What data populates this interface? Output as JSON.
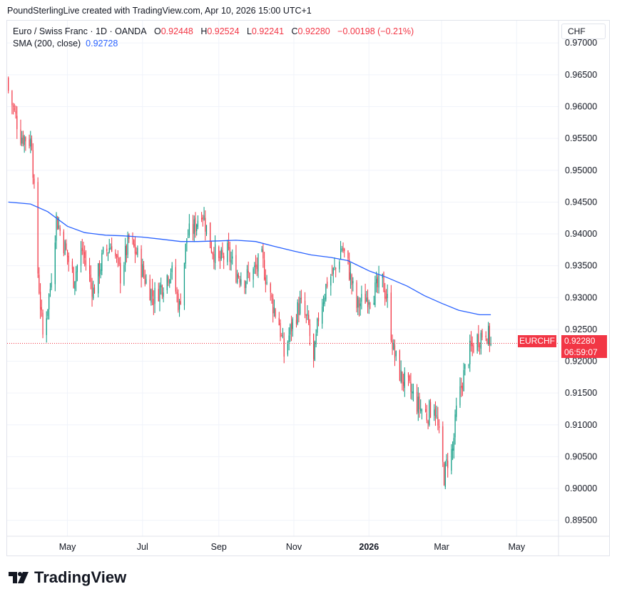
{
  "header": {
    "credit": "PoundSterlingLive created with TradingView.com, Apr 10, 2026 15:00 UTC+1"
  },
  "legend": {
    "symbol": "Euro / Swiss Franc · 1D · OANDA",
    "open_label": "O",
    "open": "0.92448",
    "high_label": "H",
    "high": "0.92524",
    "low_label": "L",
    "low": "0.92241",
    "close_label": "C",
    "close": "0.92280",
    "change": "−0.00198 (−0.21%)",
    "sma_label": "SMA (200, close)",
    "sma_value": "0.92728"
  },
  "currency": "CHF",
  "price_tag": {
    "symbol": "EURCHF",
    "price": "0.92280",
    "countdown": "06:59:07"
  },
  "brand": "TradingView",
  "colors": {
    "up": "#089981",
    "down": "#f23645",
    "sma": "#2962ff",
    "grid": "#f0f3fa"
  },
  "chart_data": {
    "type": "candlestick",
    "y_ticks": [
      "0.97000",
      "0.96500",
      "0.96000",
      "0.95500",
      "0.95000",
      "0.94500",
      "0.94000",
      "0.93500",
      "0.93000",
      "0.92500",
      "0.92000",
      "0.91500",
      "0.91000",
      "0.90500",
      "0.90000",
      "0.89500"
    ],
    "ylim": [
      0.8925,
      0.9735
    ],
    "x_ticks": [
      {
        "label": "May",
        "date": "2025-05-01"
      },
      {
        "label": "Jul",
        "date": "2025-07-01"
      },
      {
        "label": "Sep",
        "date": "2025-09-01"
      },
      {
        "label": "Nov",
        "date": "2025-11-01"
      },
      {
        "label": "2026",
        "date": "2026-01-01",
        "bold": true
      },
      {
        "label": "Mar",
        "date": "2026-03-01"
      },
      {
        "label": "May",
        "date": "2026-05-01"
      }
    ],
    "xlim": [
      "2025-03-13",
      "2026-06-04"
    ],
    "last_close": 0.9228,
    "close_path": [
      [
        "2025-03-14",
        0.9625
      ],
      [
        "2025-03-24",
        0.9555
      ],
      [
        "2025-04-02",
        0.9545
      ],
      [
        "2025-04-07",
        0.934
      ],
      [
        "2025-04-11",
        0.924
      ],
      [
        "2025-04-17",
        0.9315
      ],
      [
        "2025-04-22",
        0.9425
      ],
      [
        "2025-04-28",
        0.9385
      ],
      [
        "2025-05-06",
        0.933
      ],
      [
        "2025-05-13",
        0.9375
      ],
      [
        "2025-05-22",
        0.931
      ],
      [
        "2025-05-30",
        0.9365
      ],
      [
        "2025-06-06",
        0.9385
      ],
      [
        "2025-06-13",
        0.9335
      ],
      [
        "2025-06-20",
        0.939
      ],
      [
        "2025-06-26",
        0.937
      ],
      [
        "2025-07-03",
        0.933
      ],
      [
        "2025-07-10",
        0.93
      ],
      [
        "2025-07-17",
        0.932
      ],
      [
        "2025-07-24",
        0.9345
      ],
      [
        "2025-07-31",
        0.9285
      ],
      [
        "2025-08-06",
        0.9395
      ],
      [
        "2025-08-12",
        0.941
      ],
      [
        "2025-08-18",
        0.944
      ],
      [
        "2025-08-25",
        0.9385
      ],
      [
        "2025-09-01",
        0.9355
      ],
      [
        "2025-09-08",
        0.937
      ],
      [
        "2025-09-15",
        0.934
      ],
      [
        "2025-09-22",
        0.933
      ],
      [
        "2025-09-29",
        0.934
      ],
      [
        "2025-10-06",
        0.936
      ],
      [
        "2025-10-13",
        0.93
      ],
      [
        "2025-10-20",
        0.926
      ],
      [
        "2025-10-24",
        0.921
      ],
      [
        "2025-10-30",
        0.9255
      ],
      [
        "2025-11-06",
        0.929
      ],
      [
        "2025-11-13",
        0.9255
      ],
      [
        "2025-11-17",
        0.9195
      ],
      [
        "2025-11-21",
        0.927
      ],
      [
        "2025-11-28",
        0.9325
      ],
      [
        "2025-12-05",
        0.9345
      ],
      [
        "2025-12-10",
        0.938
      ],
      [
        "2025-12-15",
        0.935
      ],
      [
        "2025-12-22",
        0.9285
      ],
      [
        "2025-12-29",
        0.93
      ],
      [
        "2026-01-06",
        0.931
      ],
      [
        "2026-01-12",
        0.9325
      ],
      [
        "2026-01-16",
        0.9295
      ],
      [
        "2026-01-21",
        0.9215
      ],
      [
        "2026-01-27",
        0.9175
      ],
      [
        "2026-02-03",
        0.9155
      ],
      [
        "2026-02-10",
        0.913
      ],
      [
        "2026-02-17",
        0.9115
      ],
      [
        "2026-02-23",
        0.9135
      ],
      [
        "2026-02-27",
        0.908
      ],
      [
        "2026-03-03",
        0.902
      ],
      [
        "2026-03-06",
        0.9045
      ],
      [
        "2026-03-10",
        0.906
      ],
      [
        "2026-03-13",
        0.912
      ],
      [
        "2026-03-18",
        0.917
      ],
      [
        "2026-03-24",
        0.9215
      ],
      [
        "2026-03-30",
        0.9235
      ],
      [
        "2026-04-06",
        0.925
      ],
      [
        "2026-04-10",
        0.9228
      ]
    ],
    "sma_200": [
      [
        "2025-03-14",
        0.945
      ],
      [
        "2025-04-01",
        0.9447
      ],
      [
        "2025-04-15",
        0.9435
      ],
      [
        "2025-05-01",
        0.9412
      ],
      [
        "2025-05-15",
        0.9402
      ],
      [
        "2025-06-01",
        0.9398
      ],
      [
        "2025-06-15",
        0.9397
      ],
      [
        "2025-07-01",
        0.9395
      ],
      [
        "2025-07-15",
        0.9392
      ],
      [
        "2025-08-01",
        0.9388
      ],
      [
        "2025-08-15",
        0.9388
      ],
      [
        "2025-09-01",
        0.9389
      ],
      [
        "2025-09-15",
        0.939
      ],
      [
        "2025-10-01",
        0.9388
      ],
      [
        "2025-10-15",
        0.9381
      ],
      [
        "2025-11-01",
        0.9373
      ],
      [
        "2025-11-15",
        0.9367
      ],
      [
        "2025-12-01",
        0.9363
      ],
      [
        "2025-12-15",
        0.9358
      ],
      [
        "2026-01-01",
        0.9342
      ],
      [
        "2026-01-15",
        0.9332
      ],
      [
        "2026-02-01",
        0.9318
      ],
      [
        "2026-02-15",
        0.9303
      ],
      [
        "2026-03-01",
        0.9291
      ],
      [
        "2026-03-15",
        0.928
      ],
      [
        "2026-04-01",
        0.9273
      ],
      [
        "2026-04-10",
        0.9273
      ]
    ]
  }
}
